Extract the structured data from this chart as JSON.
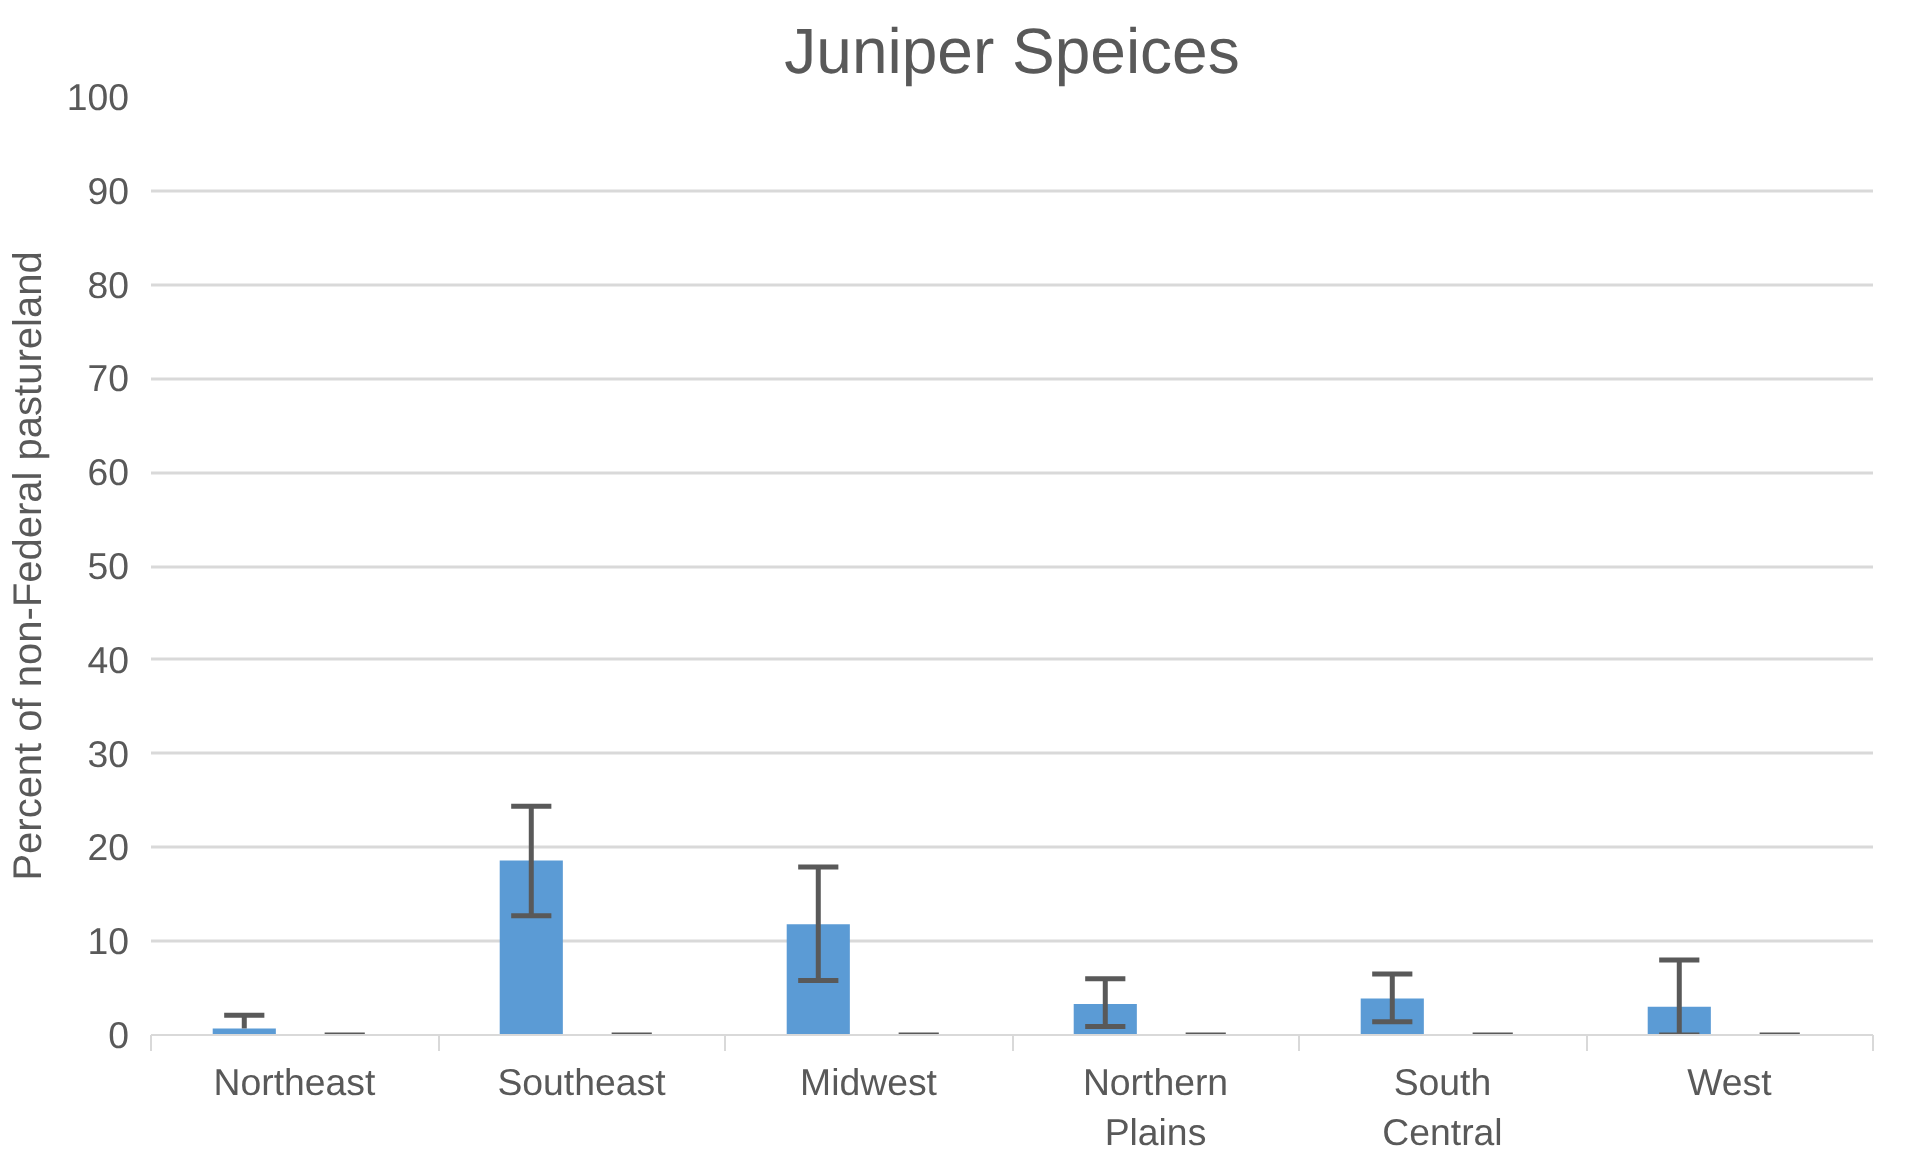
{
  "chart_data": {
    "type": "bar",
    "title": "Juniper Speices",
    "ylabel": "Percent of non-Federal pastureland",
    "categories": [
      "Northeast",
      "Southeast",
      "Midwest",
      "Northern Plains",
      "South Central",
      "West"
    ],
    "series": [
      {
        "color": "#5b9bd5",
        "values": [
          0.7,
          18.6,
          11.8,
          3.3,
          3.9,
          3.0
        ],
        "errors": [
          [
            0.7,
            2.1
          ],
          [
            12.7,
            24.4
          ],
          [
            5.8,
            17.9
          ],
          [
            0.9,
            6.0
          ],
          [
            1.4,
            6.5
          ],
          [
            0,
            8.0
          ]
        ]
      },
      {
        "color": "#5b9bd5",
        "values": [
          0,
          0,
          0,
          0,
          0,
          0
        ],
        "errors": [
          0,
          0,
          0,
          0,
          0,
          0
        ]
      }
    ],
    "ylim": [
      0,
      100
    ],
    "yticks": [
      0,
      10,
      20,
      30,
      40,
      50,
      60,
      70,
      80,
      90,
      100
    ],
    "grid": "y"
  }
}
